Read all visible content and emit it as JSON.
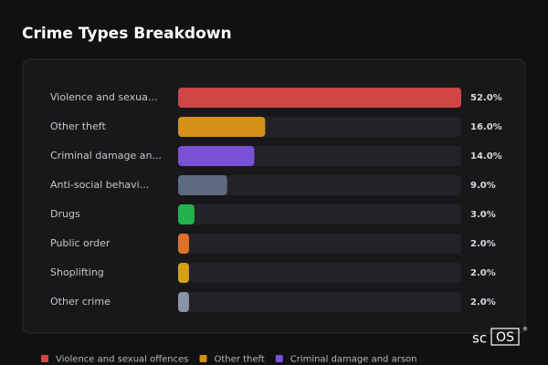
{
  "header": {
    "title": "Crime Types Breakdown"
  },
  "chart_data": {
    "type": "hbar",
    "categories": [
      "Violence and sexua...",
      "Other theft",
      "Criminal damage an...",
      "Anti-social behavi...",
      "Drugs",
      "Public order",
      "Shoplifting",
      "Other crime"
    ],
    "values": [
      52,
      16,
      14,
      9,
      3,
      2,
      2,
      2
    ],
    "value_labels": [
      "52.0%",
      "16.0%",
      "14.0%",
      "9.0%",
      "3.0%",
      "2.0%",
      "2.0%",
      "2.0%"
    ],
    "colors": [
      "#d04545",
      "#d4901a",
      "#7b4fd6",
      "#5c6b80",
      "#22b14c",
      "#e0702a",
      "#d4a017",
      "#8a94a6"
    ],
    "xlim": [
      0,
      52
    ],
    "legend": [
      "Violence and sexual offences",
      "Other theft",
      "Criminal damage and arson"
    ]
  },
  "logo": {
    "prefix": "sc",
    "boxed": "OS",
    "mark": "®"
  }
}
